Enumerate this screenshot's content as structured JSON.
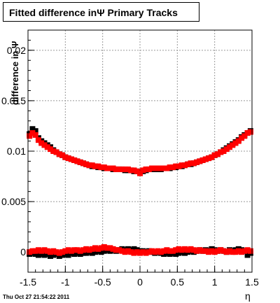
{
  "title": "Fitted difference inΨ   Primary Tracks",
  "footer": "Thu Oct 27 21:54:22 2011",
  "chart_data": {
    "type": "scatter",
    "title": "Fitted difference inΨ   Primary Tracks",
    "xlabel": "η",
    "ylabel": "difference in Ψ",
    "xlim": [
      -1.5,
      1.5
    ],
    "ylim": [
      -0.002,
      0.022
    ],
    "grid": true,
    "x_ticks": [
      "-1.5",
      "-1",
      "-0.5",
      "0",
      "0.5",
      "1",
      "1.5"
    ],
    "y_ticks": [
      "0",
      "0.005",
      "0.01",
      "0.015",
      "0.02"
    ],
    "series": [
      {
        "color": "#000000",
        "marker": "square",
        "x": [
          -1.48,
          -1.44,
          -1.4,
          -1.36,
          -1.32,
          -1.28,
          -1.24,
          -1.2,
          -1.16,
          -1.12,
          -1.08,
          -1.04,
          -1.0,
          -0.96,
          -0.92,
          -0.88,
          -0.84,
          -0.8,
          -0.76,
          -0.72,
          -0.68,
          -0.64,
          -0.6,
          -0.56,
          -0.52,
          -0.48,
          -0.44,
          -0.4,
          -0.36,
          -0.32,
          -0.28,
          -0.24,
          -0.2,
          -0.16,
          -0.12,
          -0.08,
          -0.04,
          0.0,
          0.04,
          0.08,
          0.12,
          0.16,
          0.2,
          0.24,
          0.28,
          0.32,
          0.36,
          0.4,
          0.44,
          0.48,
          0.52,
          0.56,
          0.6,
          0.64,
          0.68,
          0.72,
          0.76,
          0.8,
          0.84,
          0.88,
          0.92,
          0.96,
          1.0,
          1.04,
          1.08,
          1.12,
          1.16,
          1.2,
          1.24,
          1.28,
          1.32,
          1.36,
          1.4,
          1.44,
          1.48
        ],
        "y": [
          0.0117,
          0.0122,
          0.012,
          0.0113,
          0.011,
          0.0108,
          0.0106,
          0.0104,
          0.0101,
          0.0099,
          0.0097,
          0.0096,
          0.0094,
          0.0093,
          0.0092,
          0.0091,
          0.009,
          0.0089,
          0.0088,
          0.0087,
          0.0086,
          0.0085,
          0.0085,
          0.0084,
          0.0084,
          0.0083,
          0.0083,
          0.0083,
          0.0082,
          0.0082,
          0.0082,
          0.0082,
          0.0081,
          0.0081,
          0.0081,
          0.008,
          0.008,
          0.0079,
          0.008,
          0.0081,
          0.0082,
          0.0082,
          0.0082,
          0.0082,
          0.0082,
          0.0083,
          0.0083,
          0.0083,
          0.0084,
          0.0084,
          0.0085,
          0.0085,
          0.0086,
          0.0087,
          0.0087,
          0.0088,
          0.0089,
          0.009,
          0.0091,
          0.0092,
          0.0093,
          0.0094,
          0.0096,
          0.0097,
          0.0099,
          0.0101,
          0.0103,
          0.0105,
          0.0107,
          0.0109,
          0.0111,
          0.0114,
          0.0116,
          0.0118,
          0.012
        ]
      },
      {
        "color": "#ff0000",
        "marker": "square",
        "x": [
          -1.48,
          -1.44,
          -1.4,
          -1.36,
          -1.32,
          -1.28,
          -1.24,
          -1.2,
          -1.16,
          -1.12,
          -1.08,
          -1.04,
          -1.0,
          -0.96,
          -0.92,
          -0.88,
          -0.84,
          -0.8,
          -0.76,
          -0.72,
          -0.68,
          -0.64,
          -0.6,
          -0.56,
          -0.52,
          -0.48,
          -0.44,
          -0.4,
          -0.36,
          -0.32,
          -0.28,
          -0.24,
          -0.2,
          -0.16,
          -0.12,
          -0.08,
          -0.04,
          0.0,
          0.04,
          0.08,
          0.12,
          0.16,
          0.2,
          0.24,
          0.28,
          0.32,
          0.36,
          0.4,
          0.44,
          0.48,
          0.52,
          0.56,
          0.6,
          0.64,
          0.68,
          0.72,
          0.76,
          0.8,
          0.84,
          0.88,
          0.92,
          0.96,
          1.0,
          1.04,
          1.08,
          1.12,
          1.16,
          1.2,
          1.24,
          1.28,
          1.32,
          1.36,
          1.4,
          1.44,
          1.48
        ],
        "y": [
          0.0115,
          0.0118,
          0.0116,
          0.0111,
          0.0108,
          0.0106,
          0.0104,
          0.0102,
          0.01,
          0.0099,
          0.0097,
          0.0096,
          0.0094,
          0.0093,
          0.0092,
          0.0091,
          0.009,
          0.0089,
          0.0088,
          0.0087,
          0.0086,
          0.0086,
          0.0085,
          0.0085,
          0.0084,
          0.0084,
          0.0083,
          0.0083,
          0.0083,
          0.0082,
          0.0082,
          0.0082,
          0.0082,
          0.0082,
          0.0081,
          0.0081,
          0.008,
          0.0078,
          0.0081,
          0.0082,
          0.0082,
          0.0083,
          0.0083,
          0.0083,
          0.0083,
          0.0083,
          0.0083,
          0.0084,
          0.0084,
          0.0085,
          0.0085,
          0.0086,
          0.0086,
          0.0087,
          0.0088,
          0.0088,
          0.0089,
          0.009,
          0.0091,
          0.0092,
          0.0093,
          0.0094,
          0.0096,
          0.0097,
          0.0099,
          0.01,
          0.0102,
          0.0104,
          0.0106,
          0.0108,
          0.011,
          0.0113,
          0.0115,
          0.0118,
          0.0119
        ]
      },
      {
        "color": "#000000",
        "marker": "square",
        "x": [
          -1.48,
          -1.44,
          -1.4,
          -1.36,
          -1.32,
          -1.28,
          -1.24,
          -1.2,
          -1.16,
          -1.12,
          -1.08,
          -1.04,
          -1.0,
          -0.96,
          -0.92,
          -0.88,
          -0.84,
          -0.8,
          -0.76,
          -0.72,
          -0.68,
          -0.64,
          -0.6,
          -0.56,
          -0.52,
          -0.48,
          -0.44,
          -0.4,
          -0.36,
          -0.32,
          -0.28,
          -0.24,
          -0.2,
          -0.16,
          -0.12,
          -0.08,
          -0.04,
          0.0,
          0.04,
          0.08,
          0.12,
          0.16,
          0.2,
          0.24,
          0.28,
          0.32,
          0.36,
          0.4,
          0.44,
          0.48,
          0.52,
          0.56,
          0.6,
          0.64,
          0.68,
          0.72,
          0.76,
          0.8,
          0.84,
          0.88,
          0.92,
          0.96,
          1.0,
          1.04,
          1.08,
          1.12,
          1.16,
          1.2,
          1.24,
          1.28,
          1.32,
          1.36,
          1.4,
          1.44,
          1.48
        ],
        "y": [
          -0.0002,
          -0.0001,
          -0.0002,
          -0.0003,
          -0.0002,
          -0.0003,
          -0.0002,
          -0.0004,
          -0.0003,
          -0.0002,
          -0.0004,
          -0.0003,
          -0.0002,
          -0.0003,
          -0.0001,
          -0.0002,
          -0.0001,
          -0.0002,
          -0.0001,
          -0.0001,
          0.0,
          -0.0001,
          0.0,
          0.0001,
          0.0,
          0.0001,
          0.0002,
          0.0001,
          0.0002,
          0.0001,
          0.0002,
          0.0003,
          0.0002,
          0.0003,
          0.0002,
          0.0003,
          0.0002,
          0.0001,
          0.0001,
          0.0,
          0.0001,
          0.0,
          -0.0001,
          0.0,
          -0.0001,
          -0.0002,
          -0.0001,
          -0.0002,
          -0.0001,
          -0.0002,
          -0.0001,
          0.0,
          -0.0001,
          0.0,
          0.0001,
          0.0,
          0.0001,
          0.0002,
          0.0001,
          0.0002,
          0.0001,
          0.0003,
          0.0002,
          0.0001,
          0.0002,
          0.0001,
          0.0,
          0.0002,
          0.0001,
          0.0002,
          0.0003,
          0.0002,
          0.0001,
          -0.0003,
          -0.0001
        ]
      },
      {
        "color": "#ff0000",
        "marker": "square",
        "x": [
          -1.48,
          -1.44,
          -1.4,
          -1.36,
          -1.32,
          -1.28,
          -1.24,
          -1.2,
          -1.16,
          -1.12,
          -1.08,
          -1.04,
          -1.0,
          -0.96,
          -0.92,
          -0.88,
          -0.84,
          -0.8,
          -0.76,
          -0.72,
          -0.68,
          -0.64,
          -0.6,
          -0.56,
          -0.52,
          -0.48,
          -0.44,
          -0.4,
          -0.36,
          -0.32,
          -0.28,
          -0.24,
          -0.2,
          -0.16,
          -0.12,
          -0.08,
          -0.04,
          0.0,
          0.04,
          0.08,
          0.12,
          0.16,
          0.2,
          0.24,
          0.28,
          0.32,
          0.36,
          0.4,
          0.44,
          0.48,
          0.52,
          0.56,
          0.6,
          0.64,
          0.68,
          0.72,
          0.76,
          0.8,
          0.84,
          0.88,
          0.92,
          0.96,
          1.0,
          1.04,
          1.08,
          1.12,
          1.16,
          1.2,
          1.24,
          1.28,
          1.32,
          1.36,
          1.4,
          1.44,
          1.48
        ],
        "y": [
          0.0,
          0.0001,
          0.0001,
          0.0002,
          0.0001,
          0.0002,
          0.0001,
          0.0,
          0.0001,
          0.0,
          -0.0001,
          0.0,
          0.0001,
          0.0002,
          0.0001,
          0.0002,
          0.0002,
          0.0001,
          0.0002,
          0.0003,
          0.0002,
          0.0003,
          0.0004,
          0.0003,
          0.0004,
          0.0005,
          0.0004,
          0.0004,
          0.0003,
          0.0002,
          0.0002,
          0.0001,
          0.0,
          0.0001,
          0.0,
          -0.0001,
          0.0,
          -0.0001,
          0.0,
          -0.0001,
          0.0,
          0.0001,
          0.0,
          0.0001,
          0.0,
          0.0001,
          0.0002,
          0.0001,
          0.0001,
          0.0002,
          0.0003,
          0.0002,
          0.0003,
          0.0002,
          0.0003,
          0.0002,
          0.0001,
          0.0002,
          0.0001,
          0.0001,
          0.0,
          0.0001,
          0.0,
          0.0001,
          0.0002,
          0.0001,
          0.0,
          0.0001,
          0.0,
          0.0,
          0.0001,
          0.0,
          0.0001,
          0.0002,
          0.0001
        ]
      }
    ]
  }
}
